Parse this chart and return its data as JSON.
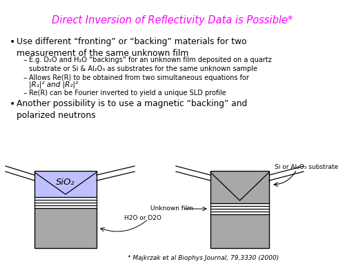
{
  "title": "Direct Inversion of Reflectivity Data is Possible*",
  "title_color": "#FF00FF",
  "bullet1_text": "Use different “fronting” or “backing” materials for two\nmeasurement of the same unknown film",
  "sub1a_text": "E.g. D₂O and H₂O “backings” for an unknown film deposited on a quartz\nsubstrate or Si & Al₂O₃ as substrates for the same unknown sample",
  "sub1b_line1": "Allows Re(R) to be obtained from two simultaneous equations for",
  "sub1b_line2": "|R₁|² and |R₂|²",
  "sub1c_text": "Re(R) can be Fourier inverted to yield a unique SLD profile",
  "bullet2_text": "Another possibility is to use a magnetic “backing” and\npolarized neutrons",
  "footnote": "* Majkrzak et al Biophys Journal, 79,3330 (2000)",
  "sio2_label": "SiO₂",
  "sio2_color": "#C0C0FF",
  "substrate_color": "#A8A8A8",
  "substrate_label": "Si or Al₂O₃ substrate",
  "unknown_film_label": "Unknown film",
  "h2o_label": "H2O or D2O",
  "bg_color": "#FFFFFF"
}
